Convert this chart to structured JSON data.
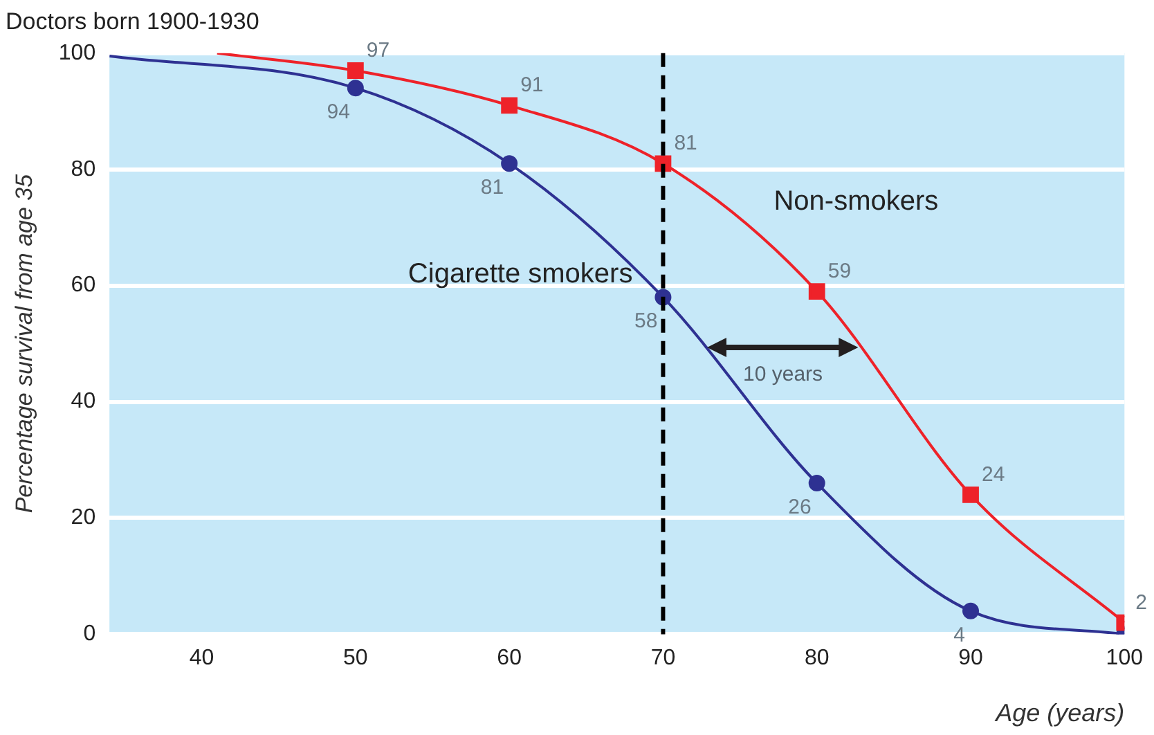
{
  "chart_data": {
    "type": "line",
    "title": "Doctors born 1900-1930",
    "xlabel": "Age (years)",
    "ylabel": "Percentage survival from age 35",
    "xlim": [
      34,
      100
    ],
    "xticks": [
      40,
      50,
      60,
      70,
      80,
      90,
      100
    ],
    "ylim": [
      0,
      100
    ],
    "yticks": [
      0,
      20,
      40,
      60,
      80,
      100
    ],
    "grid": "y",
    "legend": false,
    "series": [
      {
        "name": "Non-smokers",
        "color": "#ee2229",
        "marker": "square",
        "x": [
          41,
          50,
          60,
          70,
          80,
          90,
          100
        ],
        "values": [
          100,
          97,
          91,
          81,
          59,
          24,
          2
        ],
        "value_labels": [
          null,
          "97",
          "91",
          "81",
          "59",
          "24",
          "2"
        ]
      },
      {
        "name": "Cigarette smokers",
        "color": "#2e3192",
        "marker": "circle",
        "x": [
          34,
          50,
          60,
          70,
          80,
          90,
          100
        ],
        "values": [
          99.5,
          94,
          81,
          58,
          26,
          4,
          0
        ],
        "value_labels": [
          null,
          "94",
          "81",
          "58",
          "26",
          "4",
          null
        ]
      }
    ],
    "ref_lines": [
      {
        "axis": "x",
        "value": 70,
        "color": "#000000",
        "line_style": "dashed"
      }
    ],
    "annotations": [
      "10 years"
    ]
  }
}
